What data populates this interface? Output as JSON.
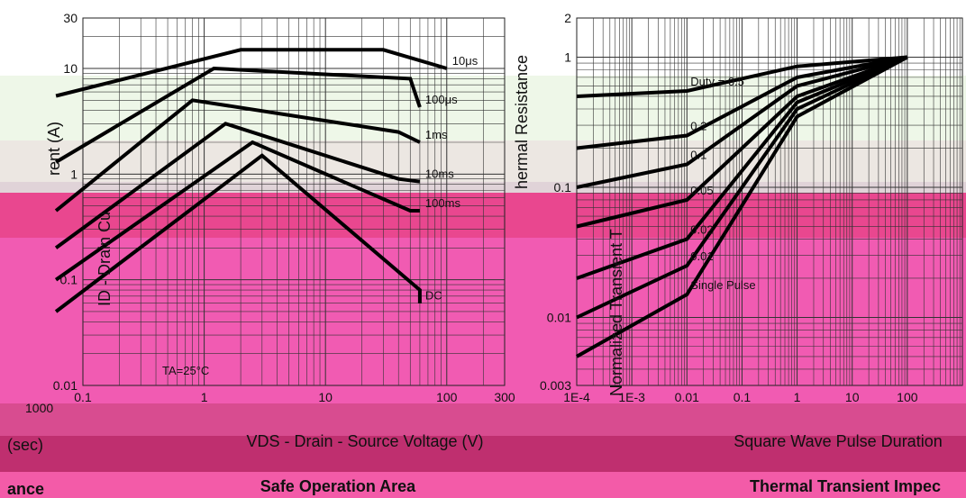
{
  "theme": {
    "bands": [
      "#eef7e8",
      "#eae6e0",
      "#e9478f",
      "#d24a8a",
      "#f05bb0",
      "#c73a7c",
      "#b02660"
    ],
    "curve": "#000000"
  },
  "fragments": {
    "left_ylabel_top": "rent (A)",
    "left_ylabel_bottom": "ID - Drain Cu",
    "left_edge_sec": "(sec)",
    "left_edge_ance": "ance",
    "left_edge_tick": "1000",
    "right_ylabel_top": "hermal Resistance",
    "right_ylabel_bottom": "Normalized Transient T",
    "right_xlabel": "Square Wave Pulse Duration",
    "right_title": "Thermal Transient Impec"
  },
  "chart_data": [
    {
      "type": "line",
      "title": "Safe Operation Area",
      "xlabel": "VDS - Drain - Source Voltage (V)",
      "ylabel": "ID - Drain Current (A)",
      "scale": "log-log",
      "xlim": [
        0.1,
        300
      ],
      "ylim": [
        0.01,
        30
      ],
      "xticks": [
        "0.1",
        "1",
        "10",
        "100",
        "300"
      ],
      "yticks": [
        "30",
        "10",
        "1",
        "0.1",
        "0.01"
      ],
      "annotation": "TA=25°C",
      "series": [
        {
          "name": "10μs",
          "points": [
            [
              0.06,
              5.5
            ],
            [
              2,
              15
            ],
            [
              30,
              15
            ],
            [
              100,
              10
            ]
          ]
        },
        {
          "name": "100μs",
          "points": [
            [
              0.06,
              1.3
            ],
            [
              1.2,
              10
            ],
            [
              50,
              8
            ],
            [
              60,
              4.3
            ]
          ]
        },
        {
          "name": "1ms",
          "points": [
            [
              0.06,
              0.45
            ],
            [
              0.8,
              5
            ],
            [
              40,
              2.5
            ],
            [
              60,
              2.0
            ]
          ]
        },
        {
          "name": "10ms",
          "points": [
            [
              0.06,
              0.2
            ],
            [
              1.5,
              3
            ],
            [
              40,
              0.9
            ],
            [
              60,
              0.85
            ]
          ]
        },
        {
          "name": "100ms",
          "points": [
            [
              0.06,
              0.1
            ],
            [
              2.5,
              2
            ],
            [
              50,
              0.45
            ],
            [
              60,
              0.45
            ]
          ]
        },
        {
          "name": "DC",
          "points": [
            [
              0.06,
              0.05
            ],
            [
              3,
              1.5
            ],
            [
              60,
              0.08
            ],
            [
              60,
              0.06
            ]
          ]
        }
      ],
      "extra_tick": "DC"
    },
    {
      "type": "line",
      "title": "Thermal Transient Impedance",
      "xlabel": "Square Wave Pulse Duration",
      "ylabel": "Normalized Transient Thermal Resistance",
      "scale": "log-log",
      "xlim": [
        0.0001,
        1000
      ],
      "ylim": [
        0.003,
        2
      ],
      "xticks": [
        "1E-4",
        "1E-3",
        "0.01",
        "0.1",
        "1",
        "10",
        "100"
      ],
      "yticks": [
        "2",
        "1",
        "0.1",
        "0.01",
        "0.003"
      ],
      "series": [
        {
          "name": "Duty = 0.5",
          "points": [
            [
              0.0001,
              0.5
            ],
            [
              0.01,
              0.55
            ],
            [
              1,
              0.85
            ],
            [
              100,
              1.0
            ]
          ]
        },
        {
          "name": "0.2",
          "points": [
            [
              0.0001,
              0.2
            ],
            [
              0.01,
              0.25
            ],
            [
              1,
              0.7
            ],
            [
              100,
              1.0
            ]
          ]
        },
        {
          "name": "0.1",
          "points": [
            [
              0.0001,
              0.1
            ],
            [
              0.01,
              0.15
            ],
            [
              1,
              0.6
            ],
            [
              100,
              1.0
            ]
          ]
        },
        {
          "name": "0.05",
          "points": [
            [
              0.0001,
              0.05
            ],
            [
              0.01,
              0.08
            ],
            [
              1,
              0.5
            ],
            [
              100,
              1.0
            ]
          ]
        },
        {
          "name": "0.02",
          "points": [
            [
              0.0001,
              0.02
            ],
            [
              0.01,
              0.04
            ],
            [
              1,
              0.45
            ],
            [
              100,
              1.0
            ]
          ]
        },
        {
          "name": "0.01",
          "points": [
            [
              0.0001,
              0.01
            ],
            [
              0.01,
              0.025
            ],
            [
              1,
              0.4
            ],
            [
              100,
              1.0
            ]
          ]
        },
        {
          "name": "Single Pulse",
          "points": [
            [
              0.0001,
              0.005
            ],
            [
              0.01,
              0.015
            ],
            [
              1,
              0.35
            ],
            [
              100,
              1.0
            ]
          ]
        }
      ]
    }
  ]
}
